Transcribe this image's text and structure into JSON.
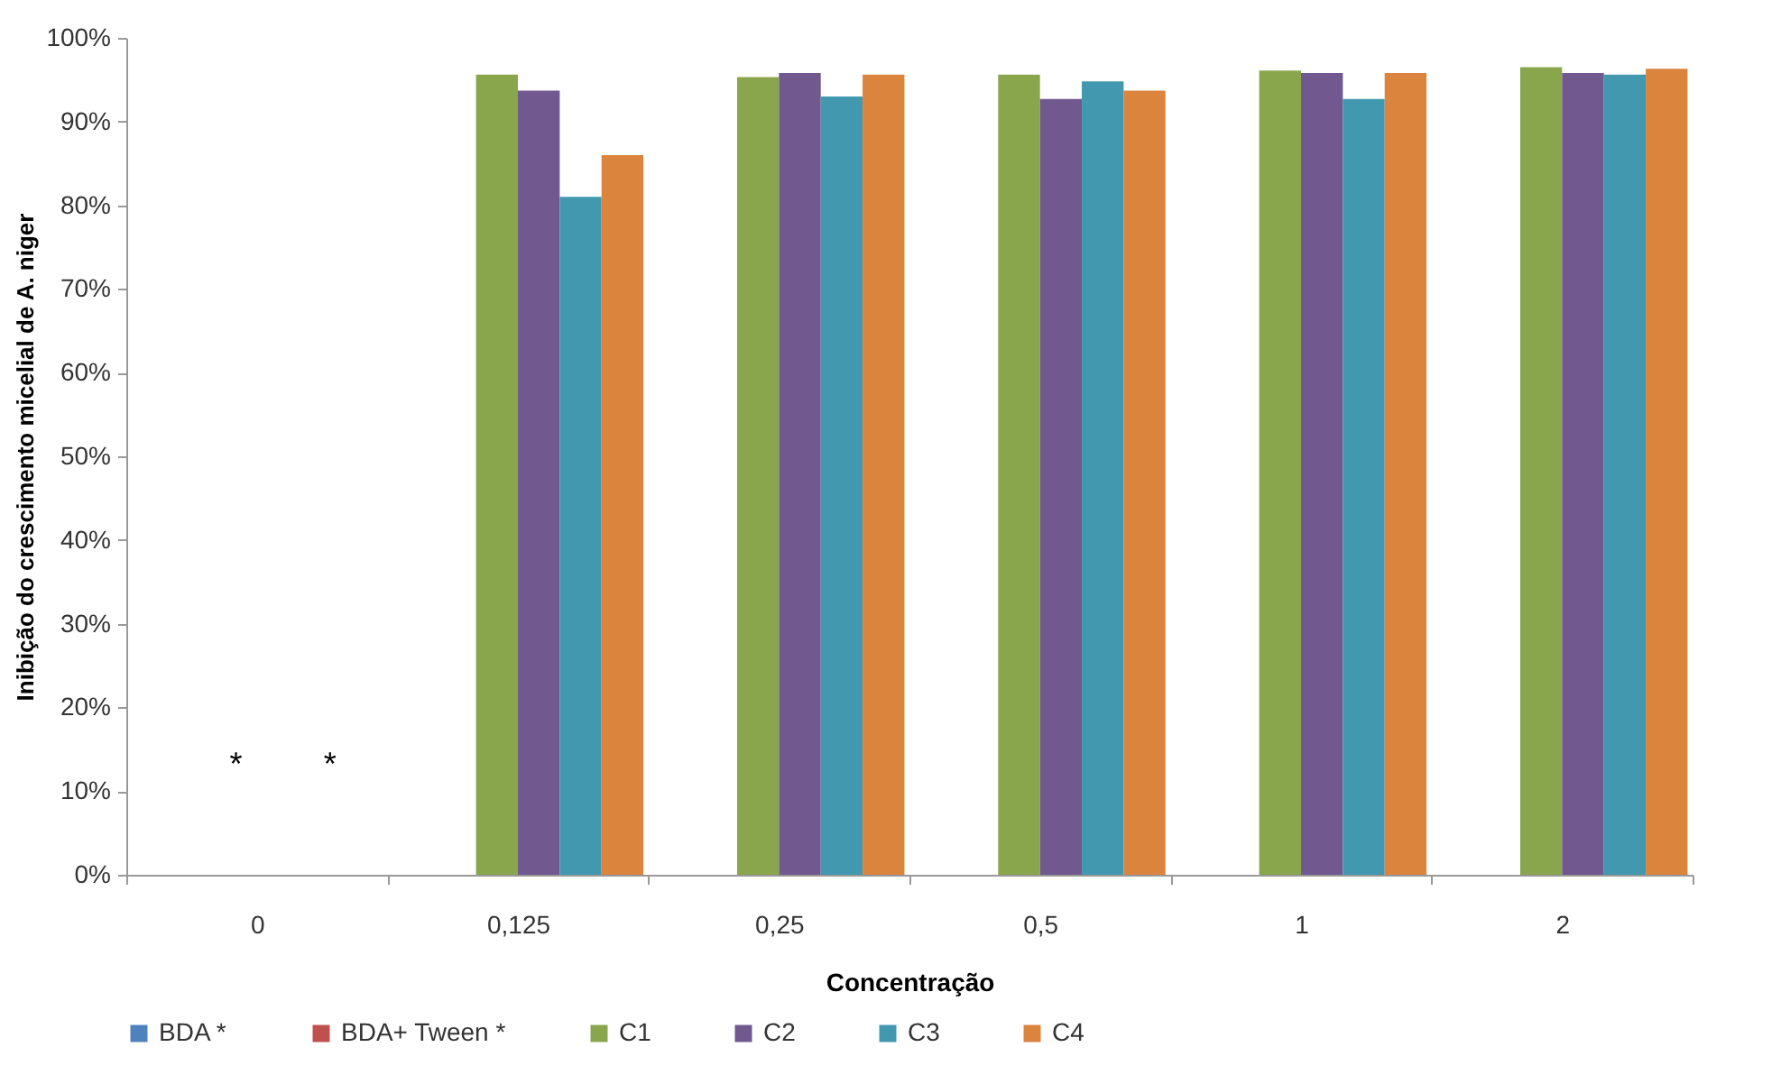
{
  "chart_data": {
    "type": "bar",
    "xlabel": "Concentração",
    "ylabel": "Inibição do crescimento micelial de A. niger",
    "categories": [
      "0",
      "0,125",
      "0,25",
      "0,5",
      "1",
      "2"
    ],
    "series": [
      {
        "name": "BDA *",
        "color": "#4f81bd",
        "values": [
          0,
          null,
          null,
          null,
          null,
          null
        ]
      },
      {
        "name": "BDA+ Tween *",
        "color": "#c0504d",
        "values": [
          0,
          null,
          null,
          null,
          null,
          null
        ]
      },
      {
        "name": "C1",
        "color": "#8aa64c",
        "values": [
          null,
          95.6,
          95.3,
          95.6,
          96.1,
          96.5
        ]
      },
      {
        "name": "C2",
        "color": "#71588f",
        "values": [
          null,
          93.7,
          95.8,
          92.7,
          95.8,
          95.8
        ]
      },
      {
        "name": "C3",
        "color": "#4198af",
        "values": [
          null,
          81.0,
          93.0,
          94.8,
          92.7,
          95.6
        ]
      },
      {
        "name": "C4",
        "color": "#db843d",
        "values": [
          null,
          86.0,
          95.6,
          93.7,
          95.8,
          96.3
        ]
      }
    ],
    "annotations": [
      "*",
      "*"
    ],
    "ylim": [
      0,
      100
    ],
    "yticks": [
      {
        "value": 0,
        "label": "0%"
      },
      {
        "value": 10,
        "label": "10%"
      },
      {
        "value": 20,
        "label": "20%"
      },
      {
        "value": 30,
        "label": "30%"
      },
      {
        "value": 40,
        "label": "40%"
      },
      {
        "value": 50,
        "label": "50%"
      },
      {
        "value": 60,
        "label": "60%"
      },
      {
        "value": 70,
        "label": "70%"
      },
      {
        "value": 80,
        "label": "80%"
      },
      {
        "value": 90,
        "label": "90%"
      },
      {
        "value": 100,
        "label": "100%"
      }
    ],
    "grid": false,
    "legend": "bottom"
  }
}
